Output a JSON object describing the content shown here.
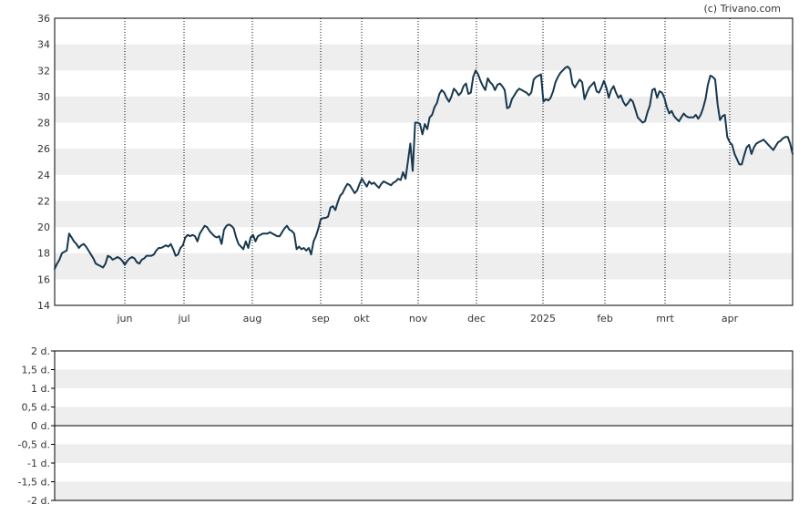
{
  "credit": "(c) Trivano.com",
  "colors": {
    "line": "#17384f",
    "band": "#eeeeee",
    "frame": "#000000",
    "grid": "#000000"
  },
  "chart_data": [
    {
      "type": "line",
      "title": "",
      "xlabel": "",
      "ylabel": "",
      "ylim": [
        14,
        36
      ],
      "y_ticks": [
        "36",
        "34",
        "32",
        "30",
        "28",
        "26",
        "24",
        "22",
        "20",
        "18",
        "16",
        "14"
      ],
      "x_ticks": [
        "jun",
        "jul",
        "aug",
        "sep",
        "okt",
        "nov",
        "dec",
        "2025",
        "feb",
        "mrt",
        "apr"
      ],
      "grid": "vertical dotted at month starts, alternating horizontal bands",
      "series": [
        {
          "values": [
            16.8,
            17.2,
            17.5,
            18.0,
            18.1,
            18.2,
            19.5,
            19.2,
            18.9,
            18.7,
            18.4,
            18.6,
            18.7,
            18.5,
            18.2,
            17.9,
            17.6,
            17.2,
            17.1,
            17.0,
            16.9,
            17.2,
            17.8,
            17.7,
            17.5,
            17.6,
            17.7,
            17.6,
            17.4,
            17.1,
            17.4,
            17.6,
            17.7,
            17.6,
            17.3,
            17.2,
            17.5,
            17.6,
            17.8,
            17.8,
            17.8,
            17.9,
            18.2,
            18.4,
            18.4,
            18.5,
            18.6,
            18.5,
            18.7,
            18.3,
            17.8,
            17.9,
            18.4,
            18.6,
            19.2,
            19.4,
            19.3,
            19.4,
            19.3,
            18.9,
            19.5,
            19.8,
            20.1,
            20.0,
            19.7,
            19.5,
            19.3,
            19.2,
            19.3,
            18.7,
            19.8,
            20.1,
            20.2,
            20.1,
            19.9,
            19.2,
            18.7,
            18.5,
            18.3,
            18.9,
            18.4,
            19.2,
            19.4,
            18.9,
            19.3,
            19.4,
            19.5,
            19.5,
            19.5,
            19.6,
            19.5,
            19.4,
            19.3,
            19.3,
            19.6,
            19.9,
            20.1,
            19.8,
            19.7,
            19.5,
            18.3,
            18.5,
            18.3,
            18.4,
            18.2,
            18.4,
            17.9,
            18.9,
            19.3,
            19.9,
            20.6,
            20.7,
            20.7,
            20.8,
            21.5,
            21.6,
            21.3,
            21.9,
            22.4,
            22.6,
            23.0,
            23.3,
            23.2,
            22.9,
            22.6,
            22.8,
            23.3,
            23.7,
            23.4,
            23.1,
            23.5,
            23.3,
            23.4,
            23.2,
            23.0,
            23.3,
            23.5,
            23.4,
            23.3,
            23.2,
            23.4,
            23.5,
            23.7,
            23.6,
            24.2,
            23.7,
            25.0,
            26.4,
            24.3,
            28.0,
            28.0,
            27.9,
            27.1,
            27.9,
            27.5,
            28.4,
            28.6,
            29.2,
            29.5,
            30.2,
            30.5,
            30.3,
            29.9,
            29.6,
            30.0,
            30.6,
            30.4,
            30.1,
            30.3,
            30.8,
            31.0,
            30.2,
            30.3,
            31.5,
            32.0,
            31.7,
            31.2,
            30.8,
            30.5,
            31.4,
            31.1,
            30.9,
            30.5,
            30.9,
            31.0,
            30.8,
            30.5,
            29.1,
            29.2,
            29.8,
            30.1,
            30.4,
            30.6,
            30.5,
            30.4,
            30.3,
            30.1,
            30.3,
            31.3,
            31.5,
            31.6,
            31.7,
            29.6,
            29.8,
            29.7,
            29.9,
            30.4,
            31.1,
            31.5,
            31.8,
            32.0,
            32.2,
            32.3,
            32.1,
            31.0,
            30.7,
            31.0,
            31.3,
            31.1,
            29.8,
            30.3,
            30.7,
            30.9,
            31.1,
            30.4,
            30.3,
            30.7,
            31.2,
            30.7,
            29.9,
            30.5,
            30.8,
            30.3,
            29.9,
            30.1,
            29.6,
            29.3,
            29.5,
            29.8,
            29.6,
            29.0,
            28.4,
            28.2,
            28.0,
            28.1,
            28.8,
            29.3,
            30.5,
            30.6,
            29.9,
            30.4,
            30.3,
            29.9,
            29.2,
            28.7,
            28.9,
            28.5,
            28.3,
            28.1,
            28.4,
            28.7,
            28.5,
            28.4,
            28.4,
            28.4,
            28.6,
            28.3,
            28.6,
            29.1,
            29.8,
            30.9,
            31.6,
            31.5,
            31.3,
            29.4,
            28.2,
            28.5,
            28.6,
            26.9,
            26.5,
            26.3,
            25.6,
            25.2,
            24.8,
            24.8,
            25.5,
            26.1,
            26.3,
            25.6,
            26.1,
            26.4,
            26.5,
            26.6,
            26.7,
            26.5,
            26.3,
            26.1,
            25.9,
            26.2,
            26.5,
            26.6,
            26.8,
            26.9,
            26.9,
            26.4,
            25.6
          ]
        }
      ]
    },
    {
      "type": "line",
      "title": "",
      "ylim": [
        -2,
        2
      ],
      "y_ticks": [
        "2 d.",
        "1,5 d.",
        "1 d.",
        "0,5 d.",
        "0 d.",
        "-0,5 d.",
        "-1 d.",
        "-1,5 d.",
        "-2 d."
      ],
      "reference_line": 0,
      "series": []
    }
  ]
}
